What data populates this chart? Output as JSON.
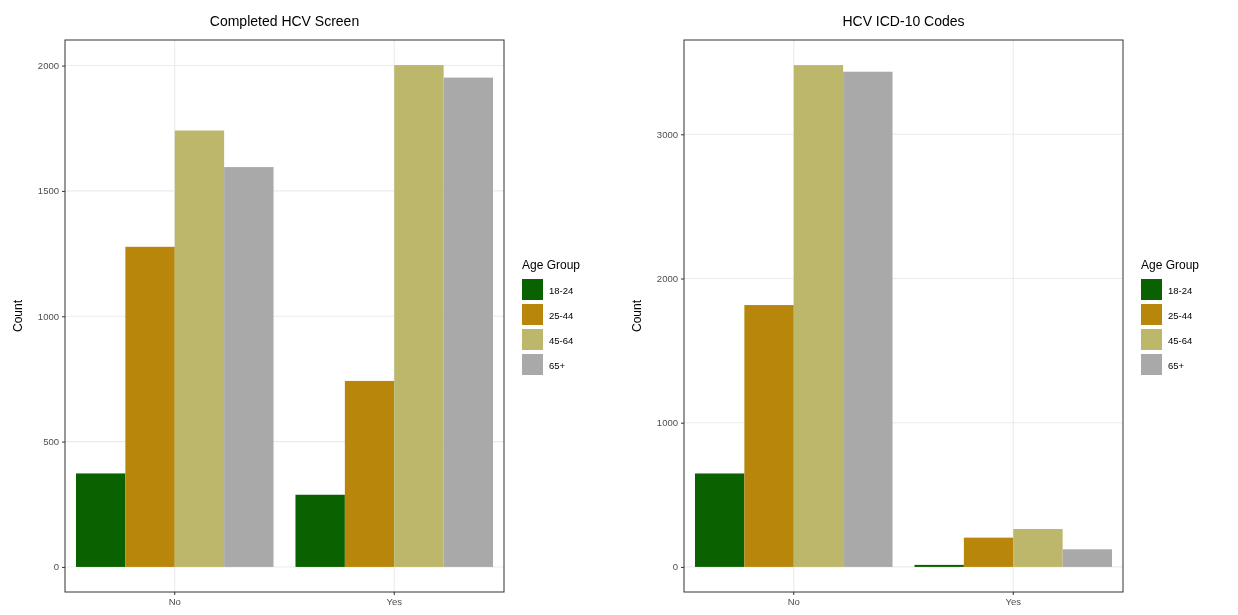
{
  "chart_data": [
    {
      "type": "bar",
      "title": "Completed HCV Screen",
      "ylabel": "Count",
      "legend_title": "Age Group",
      "categories": [
        "No",
        "Yes"
      ],
      "ylim": [
        -100,
        2102
      ],
      "yticks": [
        0,
        500,
        1000,
        1500,
        2000
      ],
      "grid": true,
      "legend": "right",
      "series": [
        {
          "name": "18-24",
          "color": "#0a6100",
          "values": [
            373,
            288
          ]
        },
        {
          "name": "25-44",
          "color": "#b8860b",
          "values": [
            1277,
            742
          ]
        },
        {
          "name": "45-64",
          "color": "#bdb76b",
          "values": [
            1741,
            2002
          ]
        },
        {
          "name": "65+",
          "color": "#a9a9a9",
          "values": [
            1595,
            1952
          ]
        }
      ]
    },
    {
      "type": "bar",
      "title": "HCV ICD-10 Codes",
      "ylabel": "Count",
      "legend_title": "Age Group",
      "categories": [
        "No",
        "Yes"
      ],
      "ylim": [
        -174,
        3654
      ],
      "yticks": [
        0,
        1000,
        2000,
        3000
      ],
      "grid": true,
      "legend": "right",
      "series": [
        {
          "name": "18-24",
          "color": "#0a6100",
          "values": [
            648,
            14
          ]
        },
        {
          "name": "25-44",
          "color": "#b8860b",
          "values": [
            1816,
            203
          ]
        },
        {
          "name": "45-64",
          "color": "#bdb76b",
          "values": [
            3480,
            263
          ]
        },
        {
          "name": "65+",
          "color": "#a9a9a9",
          "values": [
            3434,
            122
          ]
        }
      ]
    }
  ]
}
